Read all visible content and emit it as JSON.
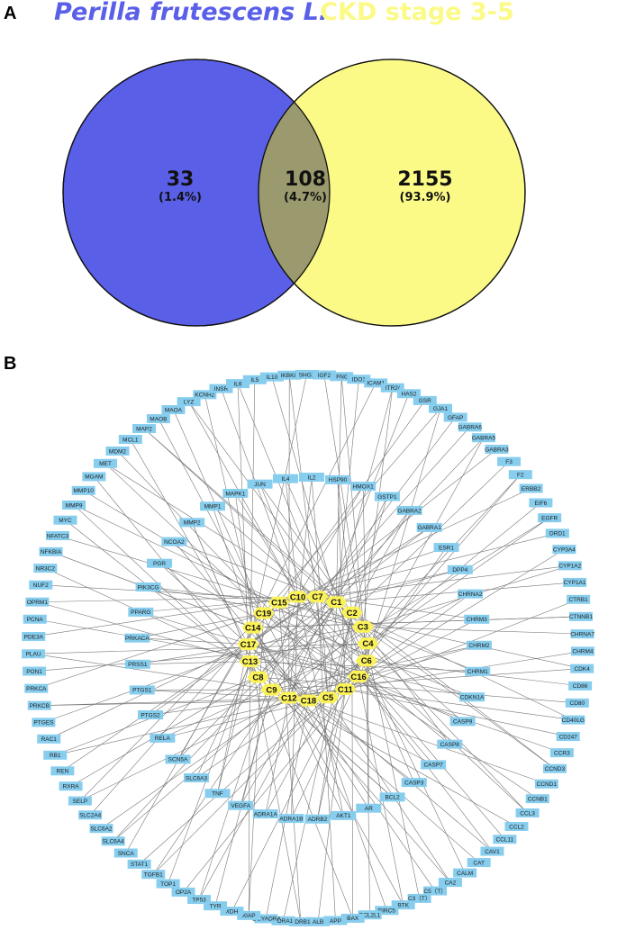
{
  "panel_a": {
    "label": "A",
    "set_left": {
      "title": "Perilla frutescens L.",
      "count": "33",
      "percent": "(1.4%)",
      "color": "#5a5fe8"
    },
    "set_right": {
      "title": "CKD stage 3-5",
      "count": "2155",
      "percent": "(93.9%)",
      "color": "#fbfa87"
    },
    "overlap": {
      "count": "108",
      "percent": "(4.7%)",
      "color": "#9a9a6e"
    }
  },
  "panel_b": {
    "label": "B",
    "node_color_target": "#87cdee",
    "node_color_compound": "#fbf25a",
    "edge_color": "#777777",
    "outer_ring": [
      "IFNG",
      "IDO1",
      "ICAM1",
      "ITR2/",
      "HAS2",
      "GSR",
      "GJA1",
      "GFAP",
      "GABRA6",
      "GABRA5",
      "GABRA3",
      "F3",
      "F2",
      "ERBB2",
      "EIF6",
      "EGFR",
      "DRD1",
      "CYP3A4",
      "CYP1A2",
      "CYP1A1",
      "CTRB1",
      "CTNNB1",
      "CHRNA7",
      "CHRM4",
      "CDK4",
      "CD86",
      "CD80",
      "CD40LG",
      "CD247",
      "CCR3",
      "CCND3",
      "CCND1",
      "CCNB1",
      "CCL3",
      "CCL2",
      "CCL11",
      "CAV1",
      "CAT",
      "CALM",
      "CA2",
      "C5（T）",
      "C3（T）",
      "BTK",
      "BIRC5",
      "BCL2L1",
      "BAX",
      "APP",
      "ALB",
      "ADRB1",
      "ADRA1",
      "\\DCYADRA",
      "XIAP",
      "XDH",
      "TYR",
      "TP53",
      "OP2A",
      "TOP1",
      "TGFB1",
      "STAT1",
      "SNCA",
      "SLC6A4",
      "SLC6A2",
      "SLC2A4",
      "SELP",
      "RXRA",
      "REN",
      "RB1",
      "RAC1",
      "PTGES",
      "PRKCB",
      "PRKCA",
      "PON1",
      "PLAU",
      "PDE3A",
      "PCNA",
      "OPRM1",
      "NUF2",
      "NR3C2",
      "NFKBIA",
      "NFATC3",
      "MYC",
      "MMP9",
      "MMP10",
      "MGAM",
      "MET",
      "MDM2",
      "MCL1",
      "MAP2",
      "MAOB",
      "MAOA",
      "LYZ",
      "KCNH2",
      "INSR",
      "IL6",
      "IL5",
      "IL10",
      "IKBKB",
      "SHG1",
      "IGF2"
    ],
    "inner_ring": [
      "HSP90",
      "HMOX1",
      "GSTP1",
      "GABRA2",
      "GABRA1",
      "ESR1",
      "DPP4",
      "CHRNA2",
      "CHRM3",
      "CHRM2",
      "CHRM1",
      "CDKN1A",
      "CASP9",
      "CASP8",
      "CASP7",
      "CASP3",
      "BCL2",
      "AR",
      "AKT1",
      "ADRB2",
      "ADRA1B",
      "ADRA1A",
      "VEGFA",
      "TNF",
      "SLC6A3",
      "SCN5A",
      "RELA",
      "PTGS2",
      "PTGS1",
      "PRSS1",
      "PRKACA",
      "PPARG",
      "PIK3CG",
      "PGR",
      "NCOA2",
      "MMP2",
      "MMP1",
      "MAPK1",
      "JUN",
      "IL4",
      "IL2"
    ],
    "compounds": [
      "C1",
      "C2",
      "C3",
      "C4",
      "C6",
      "C16",
      "C11",
      "C5",
      "C18",
      "C12",
      "C9",
      "C8",
      "C13",
      "C17",
      "C14",
      "C19",
      "C15",
      "C10",
      "C7"
    ]
  }
}
